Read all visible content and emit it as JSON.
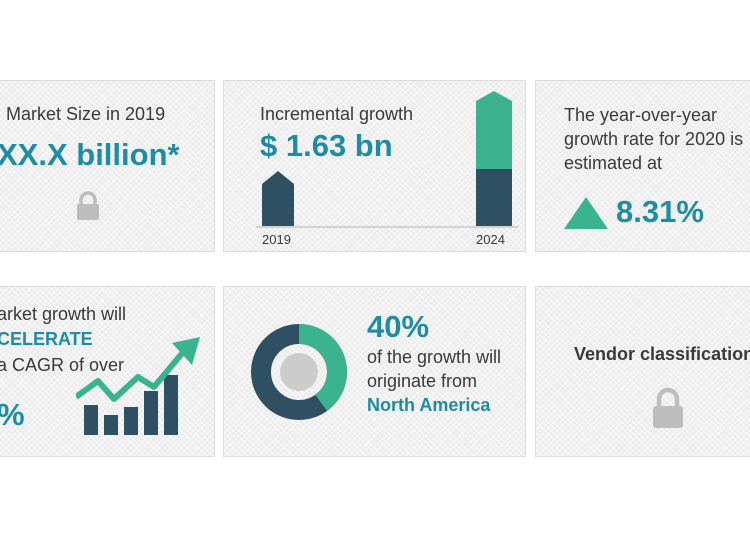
{
  "colors": {
    "teal": "#1e8ca2",
    "green": "#3bb38f",
    "navy": "#2f4f63",
    "lock_gray": "#bdbdbd"
  },
  "cards": {
    "market_size": {
      "label": "Market Size in 2019",
      "value": "XX.X billion*",
      "icon": "lock-icon"
    },
    "incremental": {
      "label": "Incremental growth",
      "value": "$ 1.63 bn",
      "year_start": "2019",
      "year_end": "2024"
    },
    "yoy": {
      "line1": "The year-over-year",
      "line2": "growth rate for 2020 is",
      "line3": "estimated at",
      "value": "8.31%",
      "icon": "triangle-up-icon"
    },
    "growth": {
      "line1": "arket growth will",
      "emphasis": "CELERATE",
      "line3": "a CAGR of over",
      "value": "%",
      "icon": "growth-bar-chart-icon"
    },
    "region": {
      "share": "40%",
      "line1": "of the growth will",
      "line2": "originate from",
      "region": "North America",
      "share_fraction": 0.4,
      "icon": "donut-chart-icon"
    },
    "vendor": {
      "label": "Vendor classification",
      "icon": "lock-icon"
    }
  }
}
